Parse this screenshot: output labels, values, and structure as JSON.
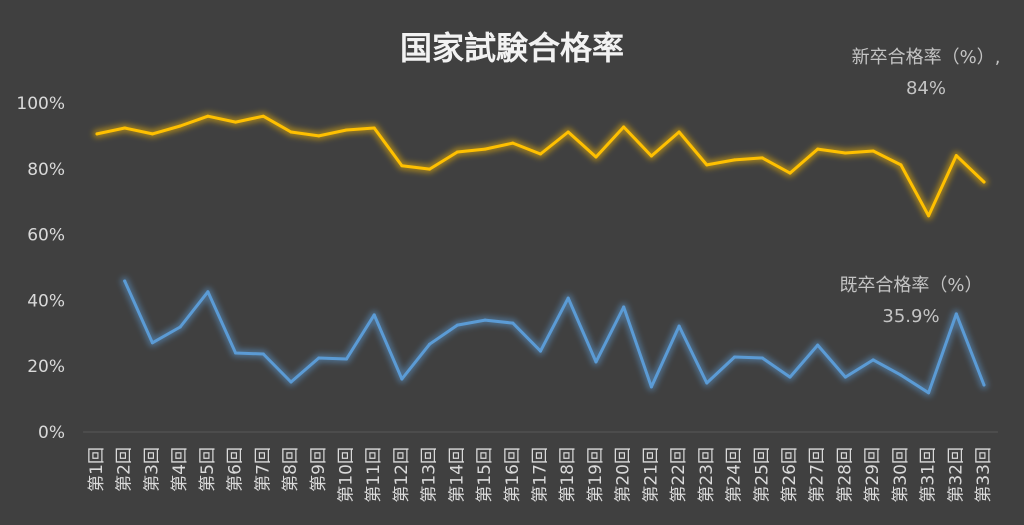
{
  "chart_data": {
    "type": "line",
    "title": "国家試験合格率",
    "background": "#404040",
    "grid": false,
    "ylim": [
      0,
      100
    ],
    "yticks": [
      {
        "value": 0,
        "label": "0%"
      },
      {
        "value": 20,
        "label": "20%"
      },
      {
        "value": 40,
        "label": "40%"
      },
      {
        "value": 60,
        "label": "60%"
      },
      {
        "value": 80,
        "label": "80%"
      },
      {
        "value": 100,
        "label": "100%"
      }
    ],
    "categories": [
      "第1回",
      "第2回",
      "第3回",
      "第4回",
      "第5回",
      "第6回",
      "第7回",
      "第8回",
      "第9回",
      "第10回",
      "第11回",
      "第12回",
      "第13回",
      "第14回",
      "第15回",
      "第16回",
      "第17回",
      "第18回",
      "第19回",
      "第20回",
      "第21回",
      "第22回",
      "第23回",
      "第24回",
      "第25回",
      "第26回",
      "第27回",
      "第28回",
      "第29回",
      "第30回",
      "第31回",
      "第32回",
      "第33回"
    ],
    "series": [
      {
        "name": "新卒合格率（%）",
        "color": "#FFC000",
        "values": [
          90.6,
          92.4,
          90.6,
          93.0,
          96.0,
          94.2,
          96.0,
          91.2,
          90.0,
          91.8,
          92.4,
          80.9,
          79.9,
          85.1,
          86.0,
          87.8,
          84.5,
          91.2,
          83.6,
          92.7,
          83.9,
          91.2,
          81.2,
          82.7,
          83.3,
          78.7,
          86.0,
          84.8,
          85.4,
          81.2,
          65.7,
          84.0,
          76.0
        ],
        "data_label": {
          "index": 31,
          "separator": ",",
          "text": "84%"
        }
      },
      {
        "name": "既卒合格率（%）",
        "color": "#5B9BD5",
        "values": [
          null,
          45.9,
          27.1,
          31.9,
          42.6,
          24.0,
          23.7,
          15.2,
          22.5,
          22.2,
          35.6,
          16.1,
          26.7,
          32.5,
          34.0,
          33.1,
          24.6,
          40.7,
          21.3,
          38.0,
          13.7,
          32.2,
          14.9,
          22.8,
          22.5,
          16.7,
          26.4,
          16.7,
          21.9,
          17.3,
          11.9,
          35.9,
          14.3
        ],
        "data_label": {
          "index": 31,
          "text": "35.9%"
        }
      }
    ]
  }
}
